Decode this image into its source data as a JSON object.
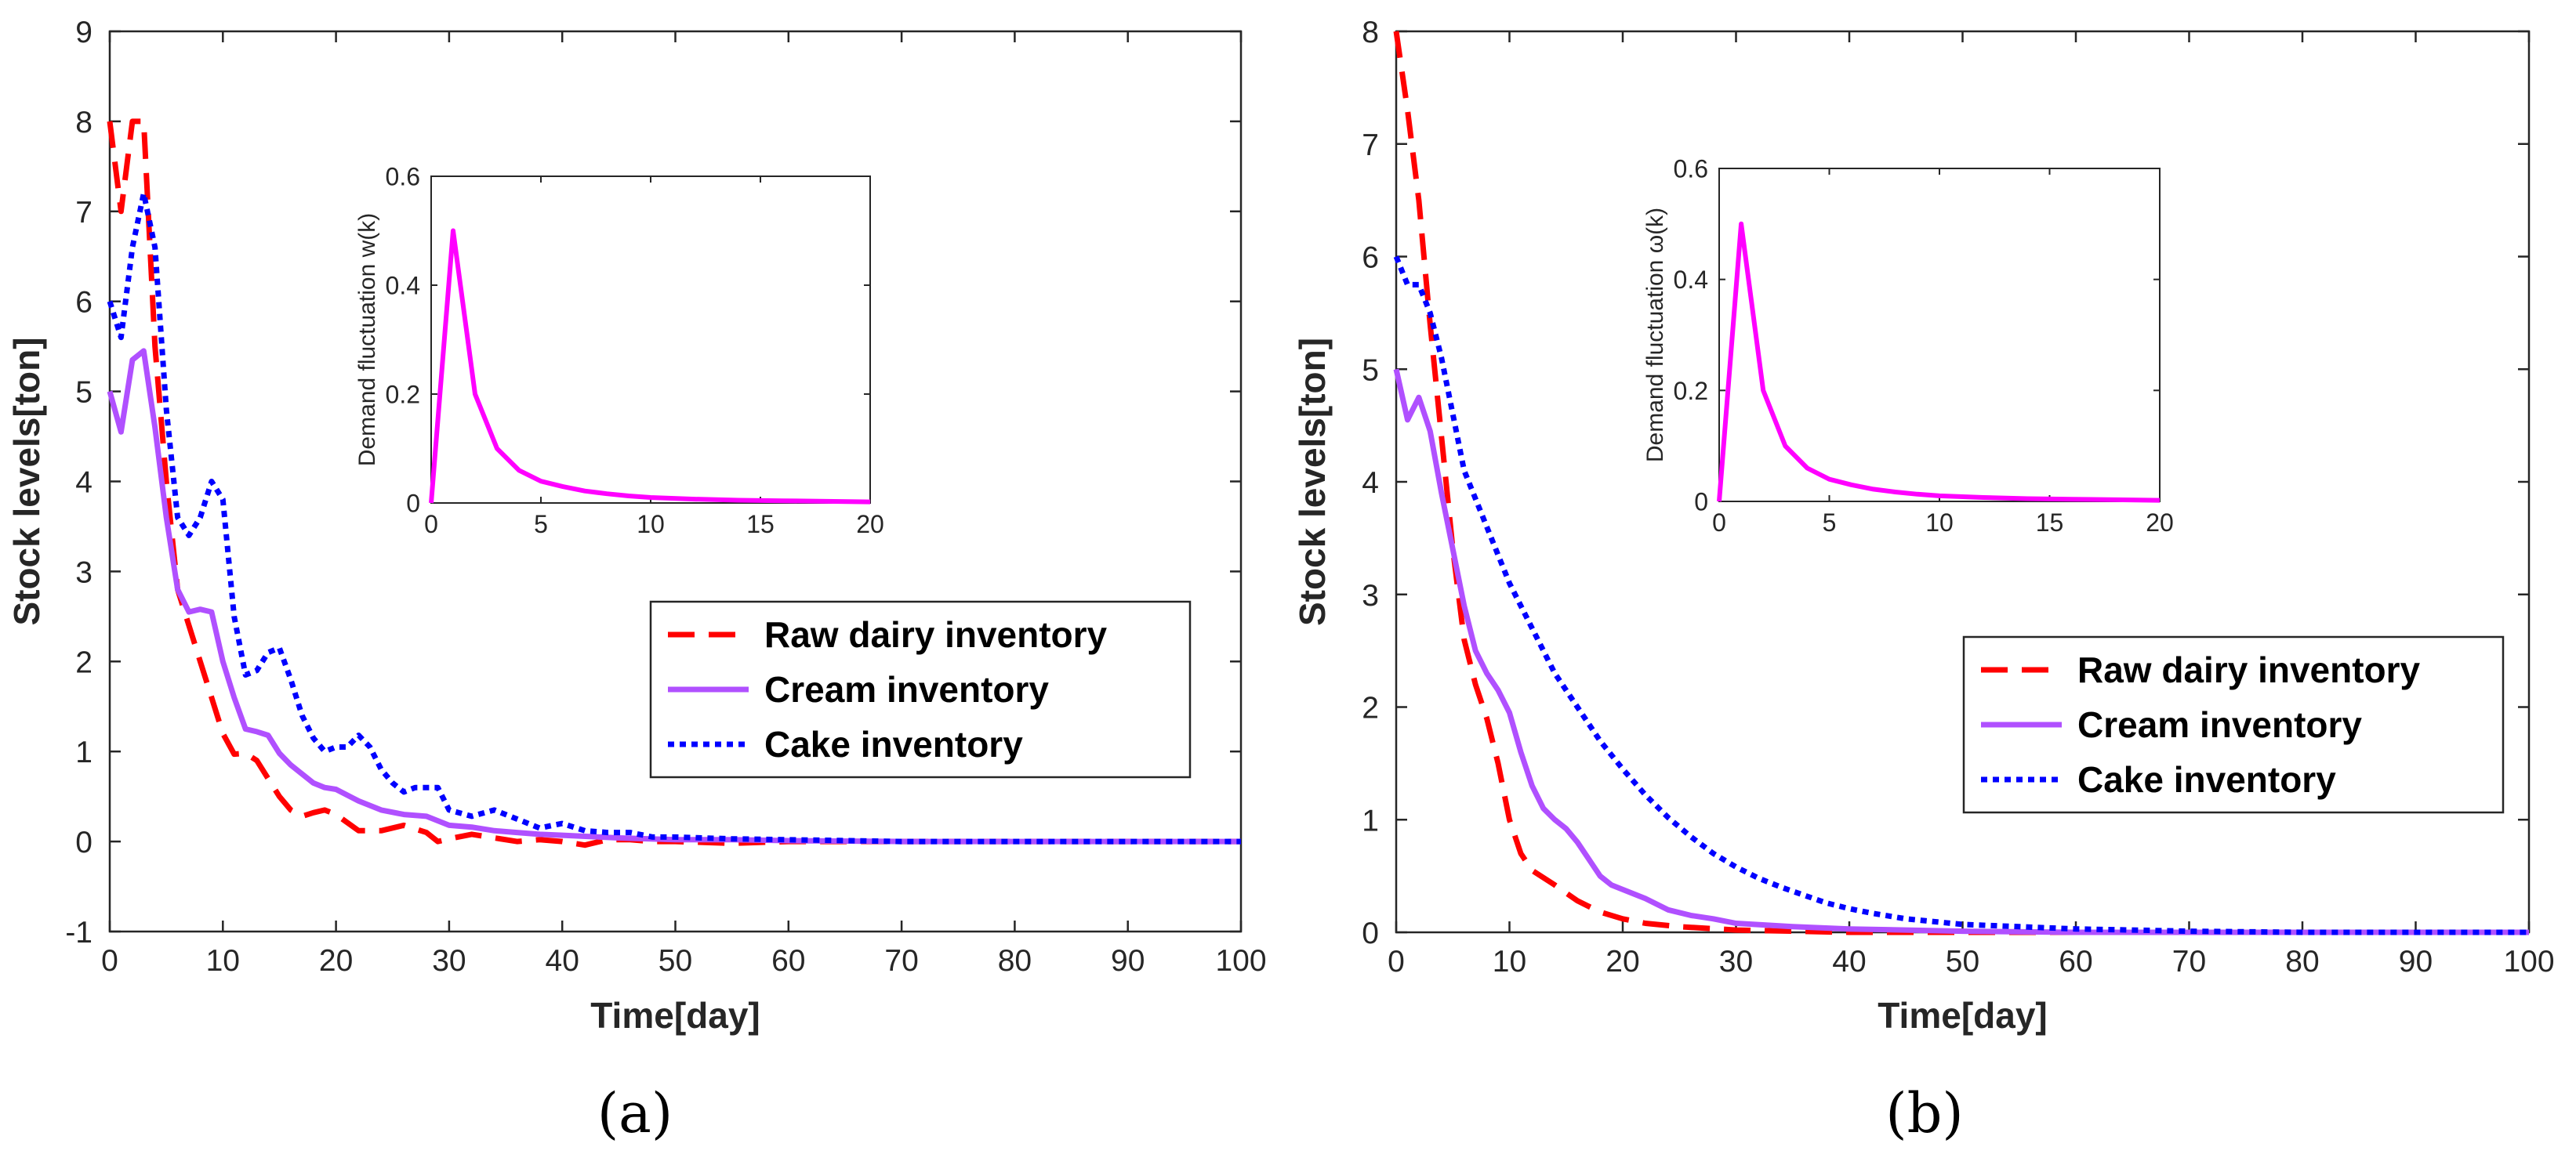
{
  "colors": {
    "raw": "#ff0000",
    "cream": "#b050ff",
    "cake": "#0000ff",
    "demand": "#ff00ff",
    "axis": "#262626"
  },
  "chart_data": [
    {
      "type": "line",
      "caption": "(a)",
      "xlabel": "Time[day]",
      "ylabel": "Stock levels[ton]",
      "xlim": [
        0,
        100
      ],
      "ylim": [
        -1,
        9
      ],
      "xticks": [
        0,
        10,
        20,
        30,
        40,
        50,
        60,
        70,
        80,
        90,
        100
      ],
      "yticks": [
        -1,
        0,
        1,
        2,
        3,
        4,
        5,
        6,
        7,
        8,
        9
      ],
      "legend_position": "center-right",
      "series": [
        {
          "name": "Raw dairy inventory",
          "color_key": "raw",
          "style": "dashed",
          "x": [
            0,
            1,
            2,
            3,
            4,
            5,
            6,
            7,
            8,
            9,
            10,
            11,
            12,
            13,
            14,
            15,
            16,
            17,
            18,
            19,
            20,
            22,
            24,
            26,
            28,
            29,
            30,
            32,
            34,
            36,
            38,
            40,
            42,
            44,
            46,
            48,
            50,
            55,
            60,
            70,
            80,
            90,
            100
          ],
          "y": [
            8,
            7,
            8,
            8,
            5.5,
            4,
            2.8,
            2.4,
            2,
            1.6,
            1.2,
            0.97,
            0.98,
            0.9,
            0.7,
            0.5,
            0.35,
            0.28,
            0.32,
            0.35,
            0.3,
            0.12,
            0.12,
            0.18,
            0.1,
            0.0,
            0.03,
            0.08,
            0.04,
            0.0,
            0.02,
            0.0,
            -0.04,
            0.02,
            0.02,
            0.0,
            0.0,
            -0.02,
            0.0,
            0.0,
            0.0,
            0.0,
            0.0
          ]
        },
        {
          "name": "Cream inventory",
          "color_key": "cream",
          "style": "solid",
          "x": [
            0,
            1,
            2,
            3,
            4,
            5,
            6,
            7,
            8,
            9,
            10,
            11,
            12,
            13,
            14,
            15,
            16,
            17,
            18,
            19,
            20,
            22,
            24,
            26,
            28,
            30,
            32,
            34,
            36,
            38,
            40,
            45,
            50,
            55,
            60,
            70,
            80,
            90,
            100
          ],
          "y": [
            5,
            4.55,
            5.35,
            5.45,
            4.6,
            3.6,
            2.8,
            2.55,
            2.58,
            2.55,
            2,
            1.6,
            1.25,
            1.22,
            1.18,
            0.98,
            0.85,
            0.75,
            0.65,
            0.6,
            0.58,
            0.45,
            0.35,
            0.3,
            0.28,
            0.18,
            0.16,
            0.12,
            0.1,
            0.08,
            0.07,
            0.04,
            0.02,
            0.02,
            0.01,
            0.0,
            0.0,
            0.0,
            0.0
          ]
        },
        {
          "name": "Cake inventory",
          "color_key": "cake",
          "style": "dotted",
          "x": [
            0,
            1,
            2,
            3,
            4,
            5,
            6,
            7,
            8,
            9,
            10,
            11,
            12,
            13,
            14,
            15,
            16,
            17,
            18,
            19,
            20,
            21,
            22,
            23,
            24,
            25,
            26,
            27,
            28,
            29,
            30,
            32,
            34,
            36,
            38,
            40,
            42,
            44,
            46,
            48,
            50,
            55,
            60,
            70,
            80,
            90,
            100
          ],
          "y": [
            6,
            5.6,
            6.6,
            7.2,
            6.6,
            4.8,
            3.6,
            3.4,
            3.6,
            4,
            3.8,
            2.5,
            1.85,
            1.9,
            2.1,
            2.15,
            1.8,
            1.4,
            1.15,
            1.0,
            1.05,
            1.05,
            1.18,
            1.05,
            0.8,
            0.65,
            0.55,
            0.6,
            0.6,
            0.6,
            0.35,
            0.28,
            0.35,
            0.25,
            0.15,
            0.2,
            0.12,
            0.1,
            0.1,
            0.05,
            0.05,
            0.03,
            0.02,
            0.0,
            0.0,
            0.0,
            0.0
          ]
        }
      ],
      "inset": {
        "ylabel": "Demand fluctuation w(k)",
        "xlim": [
          0,
          20
        ],
        "ylim": [
          0,
          0.6
        ],
        "xticks": [
          0,
          5,
          10,
          15,
          20
        ],
        "yticks": [
          0,
          0.2,
          0.4,
          0.6
        ],
        "series": [
          {
            "name": "w(k)",
            "color_key": "demand",
            "x": [
              0,
              1,
              2,
              3,
              4,
              5,
              6,
              7,
              8,
              9,
              10,
              12,
              14,
              16,
              18,
              20
            ],
            "y": [
              0,
              0.5,
              0.2,
              0.1,
              0.06,
              0.04,
              0.03,
              0.022,
              0.017,
              0.013,
              0.01,
              0.007,
              0.005,
              0.004,
              0.003,
              0.002
            ]
          }
        ]
      }
    },
    {
      "type": "line",
      "caption": "(b)",
      "xlabel": "Time[day]",
      "ylabel": "Stock levels[ton]",
      "xlim": [
        0,
        100
      ],
      "ylim": [
        0,
        8
      ],
      "xticks": [
        0,
        10,
        20,
        30,
        40,
        50,
        60,
        70,
        80,
        90,
        100
      ],
      "yticks": [
        0,
        1,
        2,
        3,
        4,
        5,
        6,
        7,
        8
      ],
      "legend_position": "center-right",
      "series": [
        {
          "name": "Raw dairy inventory",
          "color_key": "raw",
          "style": "dashed",
          "x": [
            0,
            1,
            2,
            3,
            4,
            5,
            6,
            7,
            8,
            9,
            10,
            11,
            12,
            14,
            16,
            18,
            20,
            22,
            25,
            30,
            35,
            40,
            50,
            60,
            100
          ],
          "y": [
            8,
            7.3,
            6.5,
            5.4,
            4.4,
            3.4,
            2.6,
            2.2,
            1.9,
            1.5,
            1.0,
            0.7,
            0.55,
            0.42,
            0.28,
            0.18,
            0.12,
            0.08,
            0.05,
            0.02,
            0.01,
            0.0,
            0.0,
            0.0,
            0.0
          ]
        },
        {
          "name": "Cream inventory",
          "color_key": "cream",
          "style": "solid",
          "x": [
            0,
            1,
            2,
            3,
            4,
            5,
            6,
            7,
            8,
            9,
            10,
            11,
            12,
            13,
            14,
            15,
            16,
            17,
            18,
            19,
            20,
            22,
            24,
            26,
            28,
            30,
            35,
            40,
            45,
            50,
            60,
            100
          ],
          "y": [
            5,
            4.55,
            4.75,
            4.45,
            3.9,
            3.4,
            2.9,
            2.5,
            2.3,
            2.15,
            1.95,
            1.6,
            1.3,
            1.1,
            1.0,
            0.92,
            0.8,
            0.65,
            0.5,
            0.42,
            0.38,
            0.3,
            0.2,
            0.15,
            0.12,
            0.08,
            0.05,
            0.03,
            0.02,
            0.01,
            0.0,
            0.0
          ]
        },
        {
          "name": "Cake inventory",
          "color_key": "cake",
          "style": "dotted",
          "x": [
            0,
            1,
            2,
            3,
            4,
            5,
            6,
            8,
            10,
            12,
            14,
            16,
            18,
            20,
            22,
            24,
            26,
            28,
            30,
            32,
            34,
            36,
            38,
            40,
            42,
            45,
            50,
            55,
            60,
            65,
            70,
            80,
            90,
            100
          ],
          "y": [
            6,
            5.75,
            5.75,
            5.5,
            5.1,
            4.6,
            4.1,
            3.6,
            3.1,
            2.7,
            2.3,
            2.0,
            1.7,
            1.45,
            1.22,
            1.02,
            0.85,
            0.7,
            0.58,
            0.48,
            0.4,
            0.33,
            0.26,
            0.21,
            0.17,
            0.12,
            0.07,
            0.05,
            0.03,
            0.02,
            0.01,
            0.0,
            0.0,
            0.0
          ]
        }
      ],
      "inset": {
        "ylabel": "Demand fluctuation ω(k)",
        "xlim": [
          0,
          20
        ],
        "ylim": [
          0,
          0.6
        ],
        "xticks": [
          0,
          5,
          10,
          15,
          20
        ],
        "yticks": [
          0,
          0.2,
          0.4,
          0.6
        ],
        "series": [
          {
            "name": "ω(k)",
            "color_key": "demand",
            "x": [
              0,
              1,
              2,
              3,
              4,
              5,
              6,
              7,
              8,
              9,
              10,
              12,
              14,
              16,
              18,
              20
            ],
            "y": [
              0,
              0.5,
              0.2,
              0.1,
              0.06,
              0.04,
              0.03,
              0.022,
              0.017,
              0.013,
              0.01,
              0.007,
              0.005,
              0.004,
              0.003,
              0.002
            ]
          }
        ]
      }
    }
  ]
}
